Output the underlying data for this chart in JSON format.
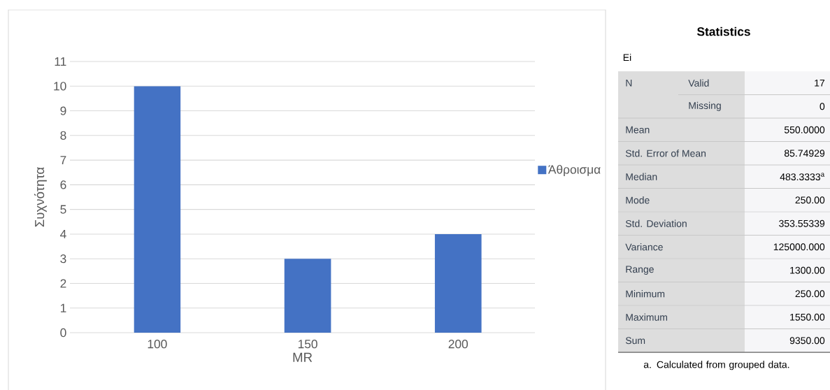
{
  "chart_data": [
    {
      "type": "bar",
      "categories": [
        "100",
        "150",
        "200"
      ],
      "series": [
        {
          "name": "Άθροισμα",
          "color": "#4472c4",
          "values": [
            10,
            3,
            4
          ]
        }
      ],
      "xlabel": "MR",
      "ylabel": "Συχνότητα",
      "ylim": [
        0,
        11
      ],
      "yticks": [
        0,
        1,
        2,
        3,
        4,
        5,
        6,
        7,
        8,
        9,
        10,
        11
      ],
      "grid": "y",
      "legend": "right"
    },
    {
      "type": "other",
      "title": "Statistics",
      "subtitle": "Ei",
      "annotations": [
        "N",
        "Valid",
        "17",
        "Missing",
        "0",
        "Mean",
        "550.0000",
        "Std. Error of Mean",
        "85.74929",
        "Median",
        "483.3333$^{a}$",
        "Mode",
        "250.00",
        "Std. Deviation",
        "353.55339",
        "Variance",
        "125000.000",
        "Range",
        "1300.00",
        "Minimum",
        "250.00",
        "Maximum",
        "1550.00",
        "Sum",
        "9350.00",
        "a. Calculated from grouped data."
      ]
    }
  ]
}
